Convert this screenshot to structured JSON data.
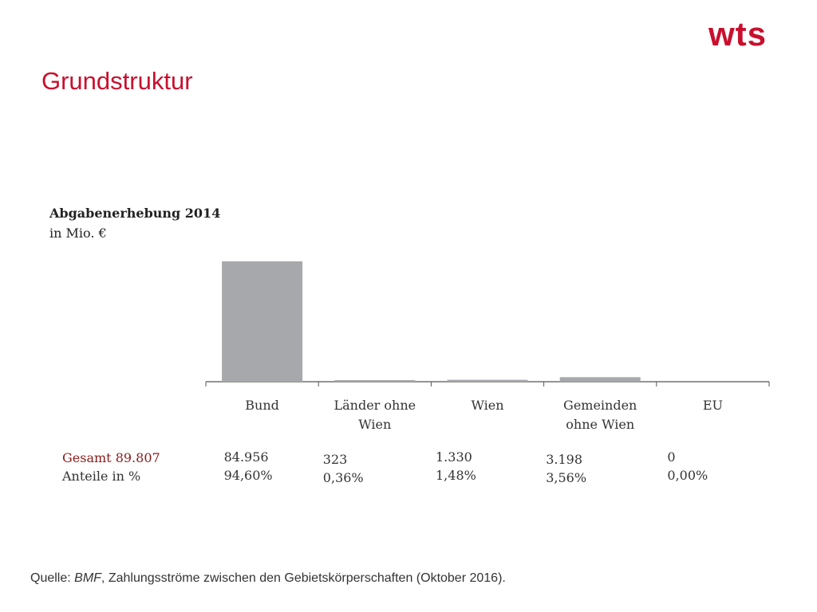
{
  "logo": {
    "text": "wts",
    "color": "#c8102e"
  },
  "header": {
    "title": "Grundstruktur"
  },
  "chart_data": {
    "type": "bar",
    "title": "Abgabenerhebung 2014",
    "subtitle": "in Mio. €",
    "categories": [
      "Bund",
      "Länder ohne Wien",
      "Wien",
      "Gemeinden ohne Wien",
      "EU"
    ],
    "category_lines": [
      [
        "Bund"
      ],
      [
        "Länder ohne",
        "Wien"
      ],
      [
        "Wien"
      ],
      [
        "Gemeinden",
        "ohne Wien"
      ],
      [
        "EU"
      ]
    ],
    "values": [
      84956,
      323,
      1330,
      3198,
      0
    ],
    "value_labels": [
      "84.956",
      "323",
      "1.330",
      "3.198",
      "0"
    ],
    "share_labels": [
      "94,60%",
      "0,36%",
      "1,48%",
      "3,56%",
      "0,00%"
    ],
    "ylim": [
      0,
      95000
    ],
    "bar_color": "#a7a8ab",
    "grid": false,
    "legend": "none"
  },
  "table": {
    "total_label": "Gesamt 89.807",
    "share_label": "Anteile in %",
    "total_color": "#8b1a1a"
  },
  "source": {
    "prefix": "Quelle: ",
    "org": "BMF",
    "suffix": ", Zahlungsströme zwischen den Gebietskörperschaften (Oktober 2016)."
  }
}
